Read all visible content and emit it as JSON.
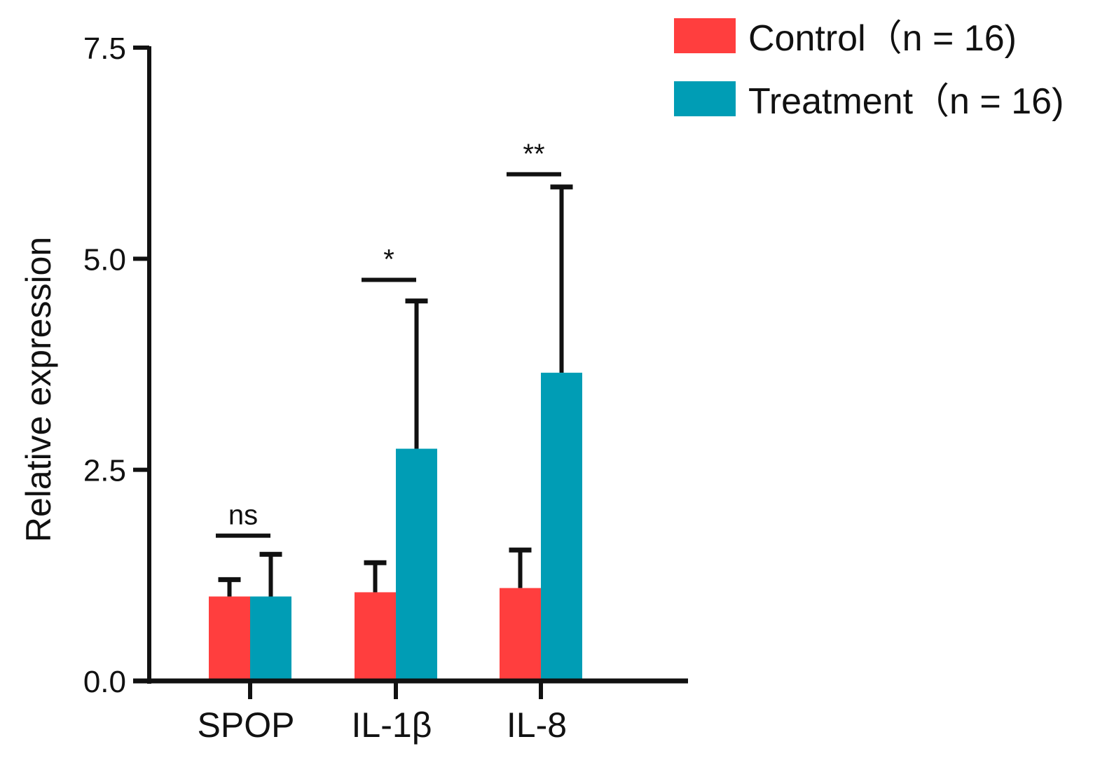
{
  "chart_data": {
    "type": "bar",
    "title": "",
    "xlabel": "",
    "ylabel": "Relative expression",
    "ylim": [
      0,
      7.5
    ],
    "yticks": [
      "0.0",
      "2.5",
      "5.0",
      "7.5"
    ],
    "ytick_values": [
      0,
      2.5,
      5,
      7.5
    ],
    "categories": [
      "SPOP",
      "IL-1β",
      "IL-8"
    ],
    "series": [
      {
        "name": "Control",
        "legend_label": "Control（n = 16)",
        "color": "#ff3e3e",
        "values": [
          1.0,
          1.05,
          1.1
        ],
        "errors": [
          0.2,
          0.35,
          0.45
        ]
      },
      {
        "name": "Treatment",
        "legend_label": "Treatment（n = 16)",
        "color": "#009db5",
        "values": [
          1.0,
          2.75,
          3.65
        ],
        "errors": [
          0.5,
          1.75,
          2.2
        ]
      }
    ],
    "significance": [
      "ns",
      "*",
      "**"
    ],
    "significance_line_values": [
      1.72,
      4.75,
      6.0
    ],
    "legend_position": "top-right",
    "grid": false
  }
}
